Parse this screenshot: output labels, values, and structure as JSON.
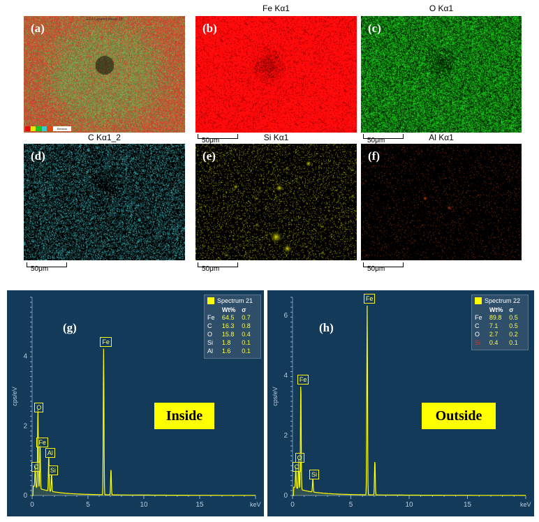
{
  "maps": [
    {
      "letter": "(a)",
      "title": "",
      "small_title": "EDS Layered Image 18",
      "scalebar": "",
      "legend_text": "Electron"
    },
    {
      "letter": "(b)",
      "title": "Fe Kα1",
      "scalebar": "50μm"
    },
    {
      "letter": "(c)",
      "title": "O Kα1",
      "scalebar": "50μm"
    },
    {
      "letter": "(d)",
      "title": "C Kα1_2",
      "scalebar": "50μm"
    },
    {
      "letter": "(e)",
      "title": "Si Kα1",
      "scalebar": "50μm"
    },
    {
      "letter": "(f)",
      "title": "Al Kα1",
      "scalebar": "50μm"
    }
  ],
  "colors": {
    "fe": "#e01010",
    "o": "#1ec81e",
    "c": "#3cc8d0",
    "si": "#e6e600",
    "al": "#e04a10",
    "layered_green": "#5a9a3a",
    "layered_red": "#b84a2a",
    "spectrum_bg": "#143a5a",
    "spectrum_line": "#ffff00"
  },
  "spectra": [
    {
      "letter": "(g)",
      "region": "Inside",
      "spectrum_name": "Spectrum 21",
      "col_wt": "Wt%",
      "col_sigma": "σ",
      "rows": [
        {
          "el": "Fe",
          "wt": "64.5",
          "sigma": "0.7"
        },
        {
          "el": "C",
          "wt": "16.3",
          "sigma": "0.8"
        },
        {
          "el": "O",
          "wt": "15.8",
          "sigma": "0.4"
        },
        {
          "el": "Si",
          "wt": "1.8",
          "sigma": "0.1"
        },
        {
          "el": "Al",
          "wt": "1.6",
          "sigma": "0.1"
        }
      ],
      "ylabel": "cps/eV",
      "xlabel": "keV",
      "x_ticks": [
        "0",
        "5",
        "10",
        "15"
      ],
      "y_ticks": [
        "0",
        "2",
        "4"
      ],
      "peaks": [
        {
          "label": "C",
          "kev": 0.28,
          "height": 0.6
        },
        {
          "label": "O",
          "kev": 0.52,
          "height": 2.3
        },
        {
          "label": "Fe",
          "kev": 0.71,
          "height": 1.3
        },
        {
          "label": "Al",
          "kev": 1.49,
          "height": 1.0
        },
        {
          "label": "Si",
          "kev": 1.74,
          "height": 0.5
        },
        {
          "label": "Fe",
          "kev": 6.4,
          "height": 4.2
        },
        {
          "label": "",
          "kev": 7.06,
          "height": 0.75
        }
      ],
      "ymax": 5.7,
      "xmax": 20
    },
    {
      "letter": "(h)",
      "region": "Outside",
      "spectrum_name": "Spectrum 22",
      "col_wt": "Wt%",
      "col_sigma": "σ",
      "rows": [
        {
          "el": "Fe",
          "wt": "89.8",
          "sigma": "0.5"
        },
        {
          "el": "C",
          "wt": "7.1",
          "sigma": "0.5"
        },
        {
          "el": "O",
          "wt": "2.7",
          "sigma": "0.2"
        },
        {
          "el": "Si",
          "wt": "0.4",
          "sigma": "0.1"
        }
      ],
      "ylabel": "cps/eV",
      "xlabel": "keV",
      "x_ticks": [
        "0",
        "5",
        "10",
        "15"
      ],
      "y_ticks": [
        "0",
        "2",
        "4",
        "6"
      ],
      "peaks": [
        {
          "label": "C",
          "kev": 0.28,
          "height": 0.7
        },
        {
          "label": "O",
          "kev": 0.52,
          "height": 1.0
        },
        {
          "label": "Fe",
          "kev": 0.71,
          "height": 3.6
        },
        {
          "label": "Si",
          "kev": 1.74,
          "height": 0.45
        },
        {
          "label": "Fe",
          "kev": 6.4,
          "height": 6.3
        },
        {
          "label": "",
          "kev": 7.06,
          "height": 1.15
        }
      ],
      "ymax": 6.6,
      "xmax": 20
    }
  ]
}
